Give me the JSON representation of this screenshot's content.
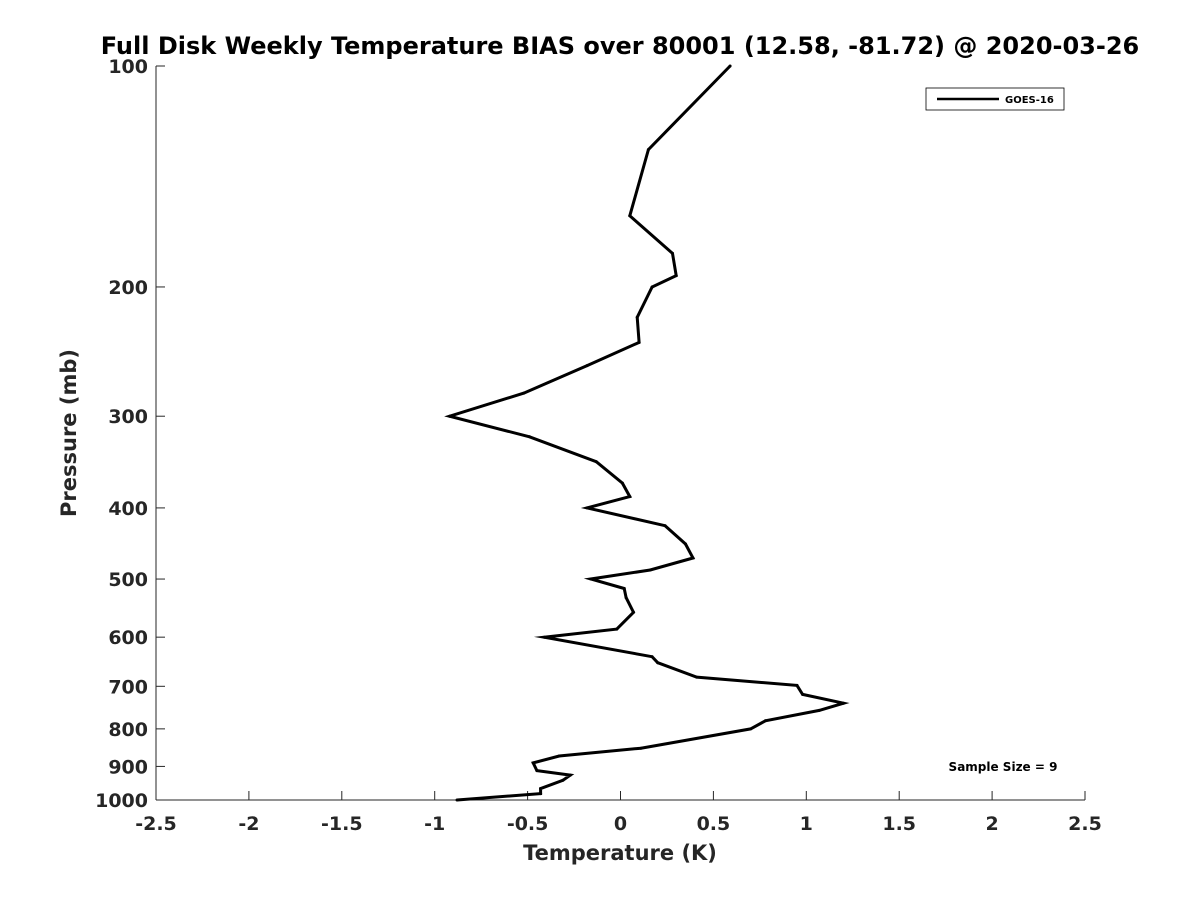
{
  "chart_data": {
    "type": "line",
    "title": "Full Disk Weekly Temperature BIAS over 80001 (12.58, -81.72) @ 2020-03-26",
    "xlabel": "Temperature (K)",
    "ylabel": "Pressure (mb)",
    "xlim": [
      -2.5,
      2.5
    ],
    "ylim": [
      100,
      1000
    ],
    "y_scale": "log",
    "y_reversed": true,
    "x_ticks": [
      "-2.5",
      "-2",
      "-1.5",
      "-1",
      "-0.5",
      "0",
      "0.5",
      "1",
      "1.5",
      "2",
      "2.5"
    ],
    "y_ticks": [
      "100",
      "200",
      "300",
      "400",
      "500",
      "600",
      "700",
      "800",
      "900",
      "1000"
    ],
    "grid": false,
    "legend_position": "top-right",
    "series": [
      {
        "name": "GOES-16",
        "color": "#000000",
        "points": [
          {
            "x": 0.59,
            "y": 100
          },
          {
            "x": 0.15,
            "y": 130
          },
          {
            "x": 0.05,
            "y": 160
          },
          {
            "x": 0.28,
            "y": 180
          },
          {
            "x": 0.3,
            "y": 193
          },
          {
            "x": 0.17,
            "y": 200
          },
          {
            "x": 0.09,
            "y": 220
          },
          {
            "x": 0.1,
            "y": 238
          },
          {
            "x": -0.18,
            "y": 256
          },
          {
            "x": -0.52,
            "y": 279
          },
          {
            "x": -0.92,
            "y": 300
          },
          {
            "x": -0.49,
            "y": 320
          },
          {
            "x": -0.13,
            "y": 346
          },
          {
            "x": 0.01,
            "y": 370
          },
          {
            "x": 0.05,
            "y": 386
          },
          {
            "x": -0.18,
            "y": 400
          },
          {
            "x": 0.24,
            "y": 423
          },
          {
            "x": 0.35,
            "y": 448
          },
          {
            "x": 0.39,
            "y": 468
          },
          {
            "x": 0.16,
            "y": 486
          },
          {
            "x": -0.16,
            "y": 500
          },
          {
            "x": 0.02,
            "y": 515
          },
          {
            "x": 0.03,
            "y": 530
          },
          {
            "x": 0.07,
            "y": 555
          },
          {
            "x": -0.02,
            "y": 585
          },
          {
            "x": -0.41,
            "y": 600
          },
          {
            "x": 0.17,
            "y": 638
          },
          {
            "x": 0.2,
            "y": 650
          },
          {
            "x": 0.41,
            "y": 680
          },
          {
            "x": 0.95,
            "y": 698
          },
          {
            "x": 0.98,
            "y": 718
          },
          {
            "x": 1.2,
            "y": 738
          },
          {
            "x": 1.07,
            "y": 755
          },
          {
            "x": 0.78,
            "y": 780
          },
          {
            "x": 0.7,
            "y": 800
          },
          {
            "x": 0.11,
            "y": 850
          },
          {
            "x": -0.33,
            "y": 871
          },
          {
            "x": -0.47,
            "y": 890
          },
          {
            "x": -0.45,
            "y": 912
          },
          {
            "x": -0.27,
            "y": 925
          },
          {
            "x": -0.31,
            "y": 940
          },
          {
            "x": -0.43,
            "y": 965
          },
          {
            "x": -0.43,
            "y": 980
          },
          {
            "x": -0.88,
            "y": 1000
          }
        ]
      }
    ],
    "annotations": [
      "Sample Size = 9"
    ]
  }
}
